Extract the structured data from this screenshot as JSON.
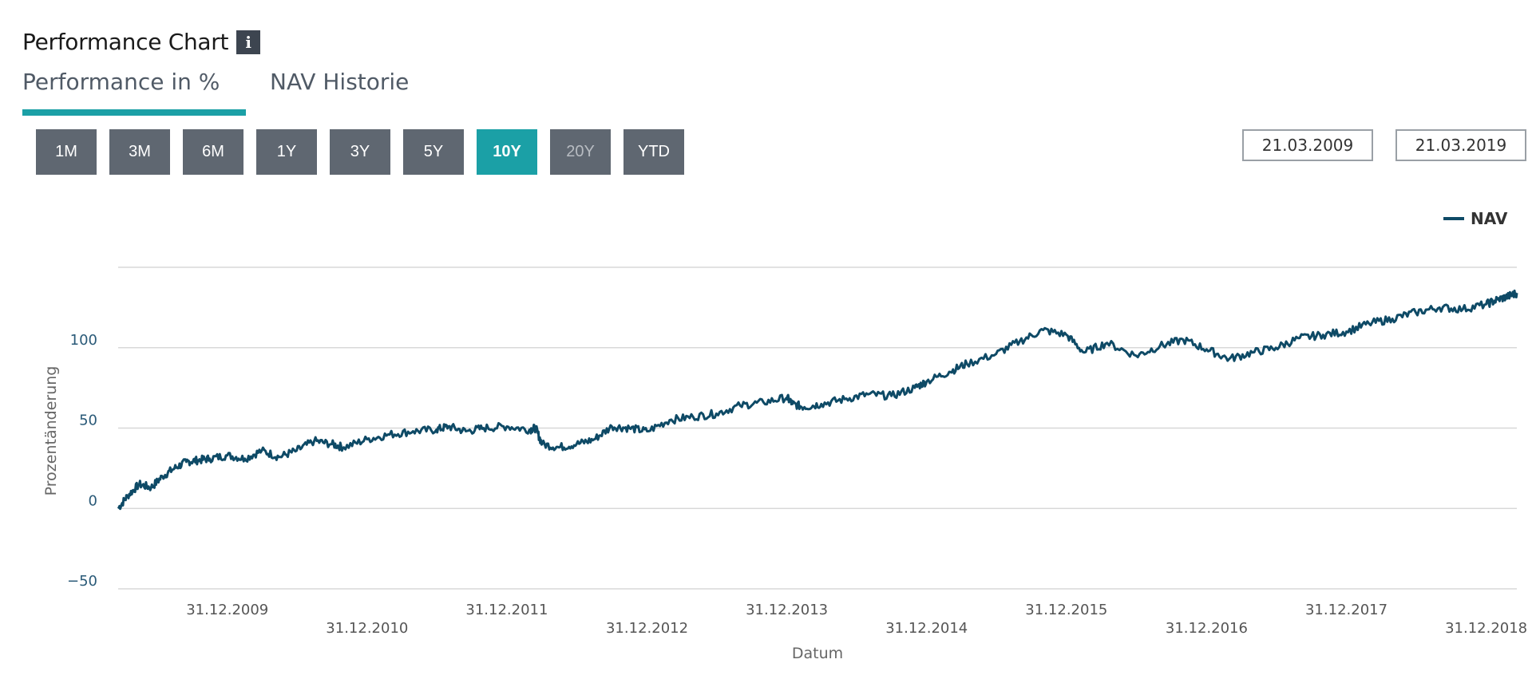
{
  "header": {
    "title": "Performance Chart",
    "info_label": "i"
  },
  "tabs": [
    {
      "label": "Performance in %"
    },
    {
      "label": "NAV Historie"
    }
  ],
  "ranges": [
    {
      "label": "1M",
      "state": "normal"
    },
    {
      "label": "3M",
      "state": "normal"
    },
    {
      "label": "6M",
      "state": "normal"
    },
    {
      "label": "1Y",
      "state": "normal"
    },
    {
      "label": "3Y",
      "state": "normal"
    },
    {
      "label": "5Y",
      "state": "normal"
    },
    {
      "label": "10Y",
      "state": "active"
    },
    {
      "label": "20Y",
      "state": "disabled"
    },
    {
      "label": "YTD",
      "state": "normal"
    }
  ],
  "date_range": {
    "from": "21.03.2009",
    "to": "21.03.2019"
  },
  "colors": {
    "accent": "#1ba0a6",
    "button": "#5f6771",
    "series": "#0e4a66",
    "grid": "#d8d8d8"
  },
  "chart_data": {
    "type": "line",
    "xlabel": "Datum",
    "ylabel": "Prozentänderung",
    "ylim": [
      -50,
      150
    ],
    "yticks": [
      -50,
      0,
      50,
      100
    ],
    "xlim": [
      "2009-03-21",
      "2019-03-21"
    ],
    "xticks": [
      "31.12.2009",
      "31.12.2010",
      "31.12.2011",
      "31.12.2012",
      "31.12.2013",
      "31.12.2014",
      "31.12.2015",
      "31.12.2016",
      "31.12.2017",
      "31.12.2018"
    ],
    "legend": {
      "position": "top-right"
    },
    "grid": true,
    "series": [
      {
        "name": "NAV",
        "points": [
          [
            "2009-03-21",
            0
          ],
          [
            "2009-04-15",
            8
          ],
          [
            "2009-05-15",
            15
          ],
          [
            "2009-06-15",
            13
          ],
          [
            "2009-07-15",
            20
          ],
          [
            "2009-08-15",
            25
          ],
          [
            "2009-09-15",
            29
          ],
          [
            "2009-10-15",
            30
          ],
          [
            "2009-11-15",
            31
          ],
          [
            "2009-12-31",
            33
          ],
          [
            "2010-02-15",
            31
          ],
          [
            "2010-03-31",
            36
          ],
          [
            "2010-05-15",
            32
          ],
          [
            "2010-06-30",
            36
          ],
          [
            "2010-08-15",
            42
          ],
          [
            "2010-09-30",
            40
          ],
          [
            "2010-10-31",
            38
          ],
          [
            "2010-12-31",
            43
          ],
          [
            "2011-02-28",
            46
          ],
          [
            "2011-04-30",
            48
          ],
          [
            "2011-06-30",
            49
          ],
          [
            "2011-07-31",
            51
          ],
          [
            "2011-09-15",
            48
          ],
          [
            "2011-10-31",
            50
          ],
          [
            "2011-12-31",
            51
          ],
          [
            "2012-02-28",
            49
          ],
          [
            "2012-03-15",
            50
          ],
          [
            "2012-04-01",
            40
          ],
          [
            "2012-05-15",
            38
          ],
          [
            "2012-06-30",
            40
          ],
          [
            "2012-08-15",
            43
          ],
          [
            "2012-09-30",
            51
          ],
          [
            "2012-11-15",
            50
          ],
          [
            "2012-12-31",
            48
          ],
          [
            "2013-02-28",
            55
          ],
          [
            "2013-04-30",
            57
          ],
          [
            "2013-06-30",
            59
          ],
          [
            "2013-08-31",
            64
          ],
          [
            "2013-10-31",
            66
          ],
          [
            "2013-12-31",
            69
          ],
          [
            "2014-01-15",
            65
          ],
          [
            "2014-02-15",
            63
          ],
          [
            "2014-03-31",
            65
          ],
          [
            "2014-05-31",
            68
          ],
          [
            "2014-07-31",
            71
          ],
          [
            "2014-09-30",
            70
          ],
          [
            "2014-11-30",
            75
          ],
          [
            "2014-12-31",
            79
          ],
          [
            "2015-02-28",
            85
          ],
          [
            "2015-04-15",
            90
          ],
          [
            "2015-06-30",
            96
          ],
          [
            "2015-08-31",
            104
          ],
          [
            "2015-10-31",
            111
          ],
          [
            "2015-12-31",
            108
          ],
          [
            "2016-02-15",
            97
          ],
          [
            "2016-04-15",
            103
          ],
          [
            "2016-06-30",
            95
          ],
          [
            "2016-08-31",
            101
          ],
          [
            "2016-10-31",
            105
          ],
          [
            "2016-12-31",
            99
          ],
          [
            "2017-02-28",
            93
          ],
          [
            "2017-04-30",
            97
          ],
          [
            "2017-06-30",
            100
          ],
          [
            "2017-08-31",
            106
          ],
          [
            "2017-10-31",
            108
          ],
          [
            "2017-12-31",
            110
          ],
          [
            "2018-02-28",
            115
          ],
          [
            "2018-04-30",
            118
          ],
          [
            "2018-06-30",
            122
          ],
          [
            "2018-08-31",
            125
          ],
          [
            "2018-10-31",
            124
          ],
          [
            "2018-12-31",
            127
          ],
          [
            "2019-01-31",
            130
          ],
          [
            "2019-02-28",
            132
          ],
          [
            "2019-03-21",
            134
          ]
        ]
      }
    ]
  }
}
